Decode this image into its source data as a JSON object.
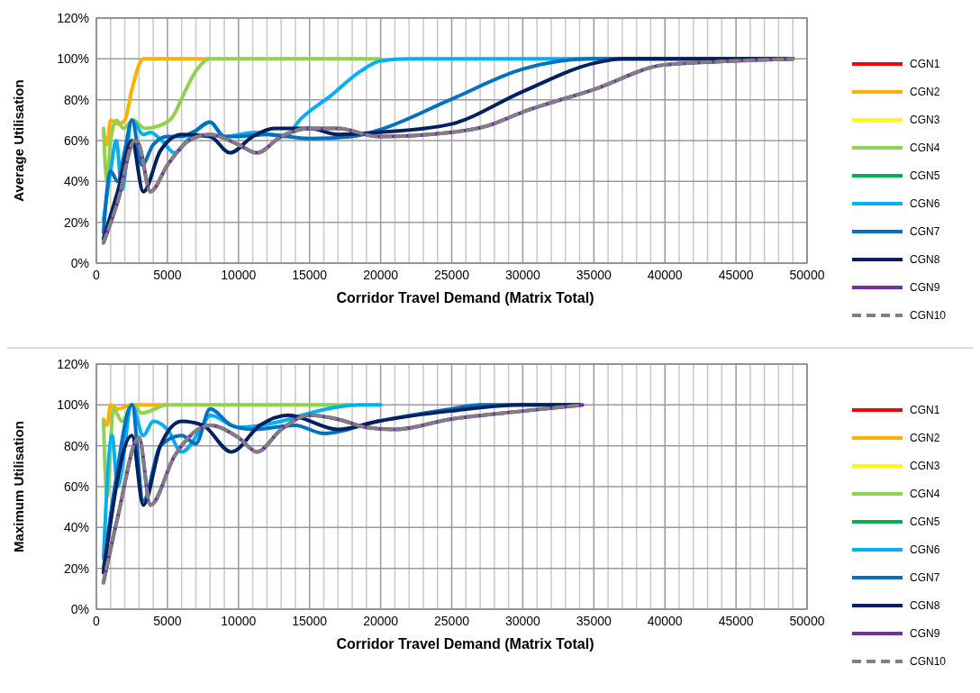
{
  "chart_data": [
    {
      "type": "line",
      "xlabel": "Corridor Travel Demand (Matrix Total)",
      "ylabel": "Average Utilisation",
      "xlim": [
        0,
        50000
      ],
      "ylim": [
        0,
        120
      ],
      "xticks": [
        0,
        {
          "value": 1000,
          "label": null
        },
        {
          "value": 2000,
          "label": null
        },
        {
          "value": 3000,
          "label": null
        },
        {
          "value": 4000,
          "label": null
        },
        5000,
        {
          "value": 6000,
          "label": null
        },
        {
          "value": 7000,
          "label": null
        },
        {
          "value": 8000,
          "label": null
        },
        {
          "value": 9000,
          "label": null
        },
        10000,
        {
          "value": 11000,
          "label": null
        },
        {
          "value": 12000,
          "label": null
        },
        {
          "value": 13000,
          "label": null
        },
        {
          "value": 14000,
          "label": null
        },
        15000,
        {
          "value": 16000,
          "label": null
        },
        {
          "value": 17000,
          "label": null
        },
        {
          "value": 18000,
          "label": null
        },
        {
          "value": 19000,
          "label": null
        },
        20000,
        {
          "value": 21000,
          "label": null
        },
        {
          "value": 22000,
          "label": null
        },
        {
          "value": 23000,
          "label": null
        },
        {
          "value": 24000,
          "label": null
        },
        25000,
        {
          "value": 26000,
          "label": null
        },
        {
          "value": 27000,
          "label": null
        },
        {
          "value": 28000,
          "label": null
        },
        {
          "value": 29000,
          "label": null
        },
        30000,
        {
          "value": 31000,
          "label": null
        },
        {
          "value": 32000,
          "label": null
        },
        {
          "value": 33000,
          "label": null
        },
        {
          "value": 34000,
          "label": null
        },
        35000,
        {
          "value": 36000,
          "label": null
        },
        {
          "value": 37000,
          "label": null
        },
        {
          "value": 38000,
          "label": null
        },
        {
          "value": 39000,
          "label": null
        },
        40000,
        {
          "value": 41000,
          "label": null
        },
        {
          "value": 42000,
          "label": null
        },
        {
          "value": 43000,
          "label": null
        },
        {
          "value": 44000,
          "label": null
        },
        45000,
        {
          "value": 46000,
          "label": null
        },
        {
          "value": 47000,
          "label": null
        },
        {
          "value": 48000,
          "label": null
        },
        {
          "value": 49000,
          "label": null
        },
        50000
      ],
      "yticks": [
        {
          "value": 0,
          "label": "0%"
        },
        {
          "value": 20,
          "label": "20%"
        },
        {
          "value": 40,
          "label": "40%"
        },
        {
          "value": 60,
          "label": "60%"
        },
        {
          "value": 80,
          "label": "80%"
        },
        {
          "value": 100,
          "label": "100%"
        },
        {
          "value": 120,
          "label": "120%"
        }
      ],
      "grid": true,
      "legend": "right",
      "series": [
        {
          "name": "CGN1",
          "color": "#ff0000"
        },
        {
          "name": "CGN2",
          "color": "#ffb000",
          "x": [
            500,
            750,
            1000,
            1500,
            2000,
            2500,
            3000,
            3300,
            5000,
            8000
          ],
          "values": [
            65,
            58,
            70,
            68,
            70,
            85,
            97,
            100,
            100,
            100
          ]
        },
        {
          "name": "CGN3",
          "color": "#ffff00"
        },
        {
          "name": "CGN4",
          "color": "#92d050",
          "x": [
            500,
            750,
            1000,
            1400,
            1900,
            2600,
            3400,
            4300,
            5300,
            6300,
            7000,
            8000,
            12000,
            16000,
            20000
          ],
          "values": [
            66,
            40,
            60,
            70,
            66,
            70,
            66,
            67,
            71,
            85,
            94,
            100,
            100,
            100,
            100
          ]
        },
        {
          "name": "CGN5",
          "color": "#00b050"
        },
        {
          "name": "CGN6",
          "color": "#00b0f0",
          "x": [
            500,
            1000,
            1400,
            1800,
            2500,
            3300,
            3800,
            4600,
            5500,
            6500,
            8000,
            9000,
            11200,
            13300,
            14300,
            16500,
            18600,
            20000,
            22000,
            30000,
            40000,
            49000
          ],
          "values": [
            21,
            45,
            60,
            36,
            70,
            63,
            64,
            60,
            54,
            61,
            69,
            62,
            64,
            62,
            70,
            82,
            94,
            99,
            100,
            100,
            100,
            100
          ]
        },
        {
          "name": "CGN7",
          "color": "#0070c0",
          "x": [
            500,
            1000,
            1500,
            2000,
            2500,
            3200,
            4000,
            5000,
            6000,
            7000,
            8000,
            9000,
            10000,
            12000,
            15000,
            18000,
            19800,
            24900,
            30000,
            34600,
            40000,
            49000
          ],
          "values": [
            15,
            45,
            40,
            55,
            70,
            48,
            58,
            62,
            62,
            65,
            69,
            62,
            62,
            63,
            61,
            62,
            65,
            80,
            95,
            100,
            100,
            100
          ]
        },
        {
          "name": "CGN8",
          "color": "#002060",
          "x": [
            500,
            1500,
            2500,
            3300,
            4500,
            6000,
            8000,
            9400,
            11000,
            12500,
            15000,
            17000,
            19800,
            24900,
            30000,
            35100,
            37000,
            42000,
            49000
          ],
          "values": [
            12,
            35,
            60,
            35,
            55,
            63,
            62,
            54,
            62,
            66,
            66,
            63,
            64,
            68,
            84,
            98,
            100,
            100,
            100
          ]
        },
        {
          "name": "CGN9",
          "color": "#7030a0",
          "x": [
            500,
            1500,
            2700,
            3000,
            3800,
            5000,
            6500,
            8000,
            10000,
            11300,
            13000,
            15000,
            17000,
            19800,
            24900,
            27400,
            30000,
            35000,
            39900,
            45000,
            49000
          ],
          "values": [
            10,
            30,
            60,
            58,
            35,
            48,
            60,
            63,
            58,
            54,
            62,
            66,
            66,
            62,
            64,
            67,
            74,
            85,
            97,
            99,
            100
          ]
        },
        {
          "name": "CGN10",
          "color": "#808080",
          "line_style": "dashed",
          "x": [
            500,
            1500,
            2700,
            3000,
            3800,
            5000,
            6500,
            8000,
            10000,
            11300,
            13000,
            15000,
            17000,
            19800,
            24900,
            27400,
            30000,
            35000,
            39900,
            45000,
            49000
          ],
          "values": [
            10,
            30,
            60,
            58,
            35,
            48,
            60,
            63,
            58,
            54,
            62,
            66,
            66,
            62,
            64,
            67,
            74,
            85,
            97,
            99,
            100
          ]
        }
      ]
    },
    {
      "type": "line",
      "xlabel": "Corridor Travel Demand (Matrix Total)",
      "ylabel": "Maximum Utilisation",
      "xlim": [
        0,
        50000
      ],
      "ylim": [
        0,
        120
      ],
      "xticks": [
        0,
        {
          "value": 1000,
          "label": null
        },
        {
          "value": 2000,
          "label": null
        },
        {
          "value": 3000,
          "label": null
        },
        {
          "value": 4000,
          "label": null
        },
        5000,
        {
          "value": 6000,
          "label": null
        },
        {
          "value": 7000,
          "label": null
        },
        {
          "value": 8000,
          "label": null
        },
        {
          "value": 9000,
          "label": null
        },
        10000,
        {
          "value": 11000,
          "label": null
        },
        {
          "value": 12000,
          "label": null
        },
        {
          "value": 13000,
          "label": null
        },
        {
          "value": 14000,
          "label": null
        },
        15000,
        {
          "value": 16000,
          "label": null
        },
        {
          "value": 17000,
          "label": null
        },
        {
          "value": 18000,
          "label": null
        },
        {
          "value": 19000,
          "label": null
        },
        20000,
        {
          "value": 21000,
          "label": null
        },
        {
          "value": 22000,
          "label": null
        },
        {
          "value": 23000,
          "label": null
        },
        {
          "value": 24000,
          "label": null
        },
        25000,
        {
          "value": 26000,
          "label": null
        },
        {
          "value": 27000,
          "label": null
        },
        {
          "value": 28000,
          "label": null
        },
        {
          "value": 29000,
          "label": null
        },
        30000,
        {
          "value": 31000,
          "label": null
        },
        {
          "value": 32000,
          "label": null
        },
        {
          "value": 33000,
          "label": null
        },
        {
          "value": 34000,
          "label": null
        },
        35000,
        {
          "value": 36000,
          "label": null
        },
        {
          "value": 37000,
          "label": null
        },
        {
          "value": 38000,
          "label": null
        },
        {
          "value": 39000,
          "label": null
        },
        40000,
        {
          "value": 41000,
          "label": null
        },
        {
          "value": 42000,
          "label": null
        },
        {
          "value": 43000,
          "label": null
        },
        {
          "value": 44000,
          "label": null
        },
        45000,
        {
          "value": 46000,
          "label": null
        },
        {
          "value": 47000,
          "label": null
        },
        {
          "value": 48000,
          "label": null
        },
        {
          "value": 49000,
          "label": null
        },
        50000
      ],
      "yticks": [
        {
          "value": 0,
          "label": "0%"
        },
        {
          "value": 20,
          "label": "20%"
        },
        {
          "value": 40,
          "label": "40%"
        },
        {
          "value": 60,
          "label": "60%"
        },
        {
          "value": 80,
          "label": "80%"
        },
        {
          "value": 100,
          "label": "100%"
        },
        {
          "value": 120,
          "label": "120%"
        }
      ],
      "grid": true,
      "legend": "right",
      "series": [
        {
          "name": "CGN1",
          "color": "#ff0000"
        },
        {
          "name": "CGN2",
          "color": "#ffb000",
          "x": [
            500,
            750,
            1000,
            1500,
            2000,
            2500,
            3000,
            5000
          ],
          "values": [
            93,
            90,
            100,
            98,
            99,
            100,
            100,
            100
          ]
        },
        {
          "name": "CGN3",
          "color": "#ffff00"
        },
        {
          "name": "CGN4",
          "color": "#92d050",
          "x": [
            500,
            750,
            1200,
            1800,
            2500,
            3200,
            5000,
            10000,
            18000
          ],
          "values": [
            92,
            55,
            98,
            92,
            100,
            96,
            100,
            100,
            100
          ]
        },
        {
          "name": "CGN5",
          "color": "#00b050"
        },
        {
          "name": "CGN6",
          "color": "#00b0f0",
          "x": [
            500,
            1100,
            1500,
            2500,
            3300,
            4000,
            5000,
            6000,
            7500,
            8000,
            10000,
            13000,
            15000,
            17000,
            18500,
            20000
          ],
          "values": [
            25,
            85,
            60,
            100,
            85,
            92,
            88,
            77,
            90,
            95,
            89,
            92,
            96,
            99,
            100,
            100
          ]
        },
        {
          "name": "CGN7",
          "color": "#0070c0",
          "x": [
            500,
            1300,
            2500,
            3300,
            4500,
            6000,
            7000,
            8000,
            9500,
            11000,
            14000,
            16000,
            19800,
            24900,
            27000,
            34000
          ],
          "values": [
            20,
            60,
            100,
            53,
            80,
            85,
            81,
            98,
            90,
            88,
            90,
            86,
            92,
            98,
            100,
            100
          ]
        },
        {
          "name": "CGN8",
          "color": "#002060",
          "x": [
            500,
            2500,
            3300,
            4500,
            6000,
            7500,
            9500,
            11500,
            13500,
            17000,
            19800,
            24900,
            30000,
            34000
          ],
          "values": [
            18,
            85,
            51,
            80,
            92,
            90,
            77,
            90,
            95,
            88,
            92,
            97,
            100,
            100
          ]
        },
        {
          "name": "CGN9",
          "color": "#7030a0",
          "x": [
            500,
            1500,
            3000,
            3800,
            5500,
            8000,
            10000,
            11300,
            13000,
            15000,
            17000,
            19000,
            21000,
            24900,
            30000,
            34200
          ],
          "values": [
            13,
            45,
            84,
            51,
            75,
            90,
            84,
            77,
            88,
            95,
            93,
            89,
            88,
            93,
            97,
            100
          ]
        },
        {
          "name": "CGN10",
          "color": "#808080",
          "line_style": "dashed",
          "x": [
            500,
            1500,
            3000,
            3800,
            5500,
            8000,
            10000,
            11300,
            13000,
            15000,
            17000,
            19000,
            21000,
            24900,
            30000,
            34200
          ],
          "values": [
            13,
            45,
            84,
            51,
            75,
            90,
            84,
            77,
            88,
            95,
            93,
            89,
            88,
            93,
            97,
            100
          ]
        }
      ]
    }
  ]
}
